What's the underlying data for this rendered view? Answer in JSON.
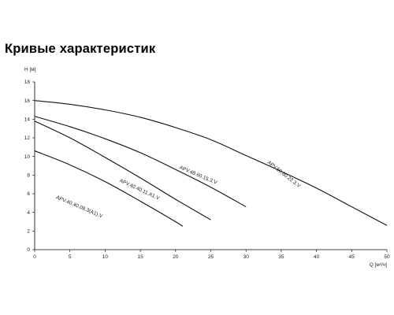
{
  "title": "Кривые характеристик",
  "chart_data": {
    "type": "line",
    "title": "Кривые характеристик",
    "xlabel": "Q [м³/ч]",
    "ylabel": "H [м]",
    "xlim": [
      0,
      50
    ],
    "ylim": [
      0,
      18
    ],
    "xticks": [
      0,
      5,
      10,
      15,
      20,
      25,
      30,
      35,
      40,
      45,
      50
    ],
    "yticks": [
      0,
      2,
      4,
      6,
      8,
      10,
      12,
      14,
      16,
      18
    ],
    "grid": false,
    "series": [
      {
        "name": "APV.40.40.08.3(A1).V",
        "label_at": [
          3,
          5.5
        ],
        "label_angle": 23,
        "x": [
          0,
          5,
          10,
          15,
          20,
          21
        ],
        "y": [
          10.6,
          9.1,
          7.3,
          5.2,
          3.0,
          2.5
        ]
      },
      {
        "name": "APV.40.40.11.A1.V",
        "label_at": [
          12,
          7.3
        ],
        "label_angle": 25,
        "x": [
          0,
          5,
          10,
          15,
          20,
          25
        ],
        "y": [
          13.8,
          12.0,
          9.9,
          7.7,
          5.4,
          3.2
        ]
      },
      {
        "name": "APV.48.60.15.3.V",
        "label_at": [
          20.5,
          8.7
        ],
        "label_angle": 23,
        "x": [
          0,
          5,
          10,
          15,
          20,
          25,
          30
        ],
        "y": [
          14.3,
          13.2,
          11.9,
          10.4,
          8.6,
          6.7,
          4.6
        ]
      },
      {
        "name": "APV.50.80.22.3.V",
        "label_at": [
          33,
          9.3
        ],
        "label_angle": 38,
        "x": [
          0,
          5,
          10,
          15,
          20,
          25,
          30,
          35,
          40,
          45,
          50
        ],
        "y": [
          16.0,
          15.6,
          15.0,
          14.2,
          13.1,
          11.8,
          10.1,
          8.4,
          6.6,
          4.6,
          2.6
        ]
      }
    ]
  }
}
